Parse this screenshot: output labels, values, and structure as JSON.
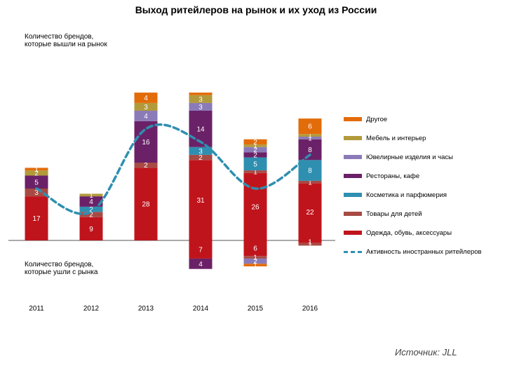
{
  "title": "Выход ритейлеров на рынок и их уход из России",
  "annotations": {
    "entered": "Количество брендов, которые вышли на рынок",
    "left": "Количество брендов, которые ушли с рынка"
  },
  "source": "Источник: JLL",
  "chart_data": {
    "type": "bar",
    "stacked": true,
    "categories": [
      "2011",
      "2012",
      "2013",
      "2014",
      "2015",
      "2016"
    ],
    "series": [
      {
        "name": "Одежда, обувь, аксессуары",
        "color": "#c0141c",
        "values": [
          17,
          9,
          28,
          31,
          26,
          22
        ],
        "negative": [
          0,
          0,
          0,
          -7,
          -6,
          -1
        ]
      },
      {
        "name": "Товары для детей",
        "color": "#a84a44",
        "values": [
          3,
          2,
          2,
          2,
          1,
          1
        ],
        "negative": [
          0,
          0,
          0,
          0,
          -1,
          -1
        ]
      },
      {
        "name": "Косметика и парфюмерия",
        "color": "#2f8fb0",
        "values": [
          0,
          2,
          0,
          3,
          5,
          8
        ],
        "negative": [
          0,
          0,
          0,
          0,
          0,
          0
        ]
      },
      {
        "name": "Рестораны, кафе",
        "color": "#6b2167",
        "values": [
          5,
          4,
          16,
          14,
          2,
          8
        ],
        "negative": [
          0,
          0,
          0,
          -4,
          0,
          0
        ]
      },
      {
        "name": "Ювелирные изделия и часы",
        "color": "#8b7ab8",
        "values": [
          0,
          0,
          4,
          3,
          2,
          1
        ],
        "negative": [
          0,
          0,
          0,
          0,
          -2,
          0
        ]
      },
      {
        "name": "Мебель и интерьер",
        "color": "#b29a3c",
        "values": [
          2,
          1,
          3,
          3,
          1,
          1
        ],
        "negative": [
          0,
          0,
          0,
          0,
          0,
          0
        ]
      },
      {
        "name": "Другое",
        "color": "#e36c0a",
        "values": [
          1,
          0,
          4,
          1,
          2,
          6
        ],
        "negative": [
          0,
          0,
          0,
          0,
          -1,
          0
        ]
      }
    ],
    "labels_shown": {
      "Одежда, обувь, аксессуары": [
        [
          "17"
        ],
        [
          "9"
        ],
        [
          "28"
        ],
        [
          "31"
        ],
        [
          "26"
        ],
        [
          "22"
        ]
      ],
      "Товары для детей": [
        [
          "3"
        ],
        [
          "2"
        ],
        [
          "2"
        ],
        [
          "2"
        ],
        [
          "1"
        ],
        [
          "1"
        ]
      ],
      "Косметика и парфюмерия": [
        [
          ""
        ],
        [
          "2"
        ],
        [
          ""
        ],
        [
          "3"
        ],
        [
          "5"
        ],
        [
          "8"
        ]
      ],
      "Рестораны, кафе": [
        [
          "5"
        ],
        [
          "4"
        ],
        [
          "16"
        ],
        [
          "14"
        ],
        [
          "2"
        ],
        [
          "8"
        ]
      ],
      "Ювелирные изделия и часы": [
        [
          ""
        ],
        [
          ""
        ],
        [
          "4"
        ],
        [
          "3"
        ],
        [
          "2"
        ],
        [
          "1"
        ]
      ],
      "Мебель и интерьер": [
        [
          "2"
        ],
        [
          "1"
        ],
        [
          "3"
        ],
        [
          "3"
        ],
        [
          "1"
        ],
        [
          "1"
        ]
      ],
      "Другое": [
        [
          "1"
        ],
        [
          ""
        ],
        [
          "4"
        ],
        [
          ""
        ],
        [
          "2"
        ],
        [
          "6"
        ]
      ]
    },
    "negative_labels": [
      {
        "year": "2014",
        "series": "Рестораны, кафе",
        "label": "4"
      },
      {
        "year": "2014",
        "series": "Одежда, обувь, аксессуары",
        "label": "7"
      },
      {
        "year": "2015",
        "series": "Ювелирные изделия и часы",
        "label": "2"
      },
      {
        "year": "2015",
        "series": "Товары для детей",
        "label": "1"
      },
      {
        "year": "2015",
        "series": "Другое",
        "label": "1"
      },
      {
        "year": "2015",
        "series": "Одежда, обувь, аксессуары",
        "label": "6"
      },
      {
        "year": "2016",
        "series": "Одежда, обувь, аксессуары",
        "label": "1"
      },
      {
        "year": "2016",
        "series": "Товары для детей",
        "label": "1"
      }
    ],
    "line": {
      "name": "Активность иностранных ритейлеров",
      "color": "#2f8fb0",
      "values": [
        20,
        11,
        43,
        38,
        20,
        33
      ]
    },
    "ylim": [
      -17,
      85
    ],
    "legend_position": "right"
  }
}
